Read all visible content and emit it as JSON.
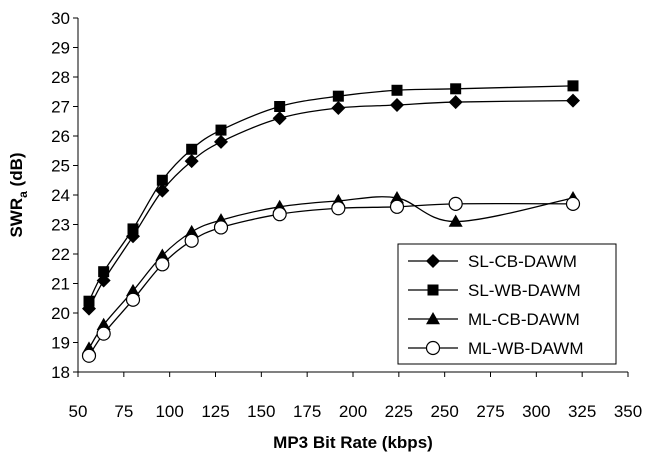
{
  "chart_data": {
    "type": "line",
    "xlabel": "MP3 Bit Rate (kbps)",
    "ylabel": "SWRa (dB)",
    "ylabel_main": "SWR",
    "ylabel_sub": "a",
    "ylabel_unit": " (dB)",
    "xlim": [
      50,
      350
    ],
    "ylim": [
      18,
      30
    ],
    "xticks": [
      50,
      75,
      100,
      125,
      150,
      175,
      200,
      225,
      250,
      275,
      300,
      325,
      350
    ],
    "yticks": [
      18,
      19,
      20,
      21,
      22,
      23,
      24,
      25,
      26,
      27,
      28,
      29,
      30
    ],
    "grid": false,
    "legend_position": "lower-right",
    "x": [
      56,
      64,
      80,
      96,
      112,
      128,
      160,
      192,
      224,
      256,
      320
    ],
    "series": [
      {
        "name": "SL-CB-DAWM",
        "marker": "diamond",
        "values": [
          20.15,
          21.1,
          22.6,
          24.15,
          25.15,
          25.8,
          26.6,
          26.95,
          27.05,
          27.15,
          27.2
        ]
      },
      {
        "name": "SL-WB-DAWM",
        "marker": "square",
        "values": [
          20.4,
          21.4,
          22.85,
          24.5,
          25.55,
          26.2,
          27.0,
          27.35,
          27.55,
          27.6,
          27.7
        ]
      },
      {
        "name": "ML-CB-DAWM",
        "marker": "triangle",
        "values": [
          18.8,
          19.6,
          20.75,
          21.95,
          22.75,
          23.15,
          23.6,
          23.8,
          23.9,
          23.1,
          23.9
        ]
      },
      {
        "name": "ML-WB-DAWM",
        "marker": "circle",
        "values": [
          18.55,
          19.3,
          20.45,
          21.65,
          22.45,
          22.9,
          23.35,
          23.55,
          23.6,
          23.7,
          23.7
        ]
      }
    ]
  }
}
